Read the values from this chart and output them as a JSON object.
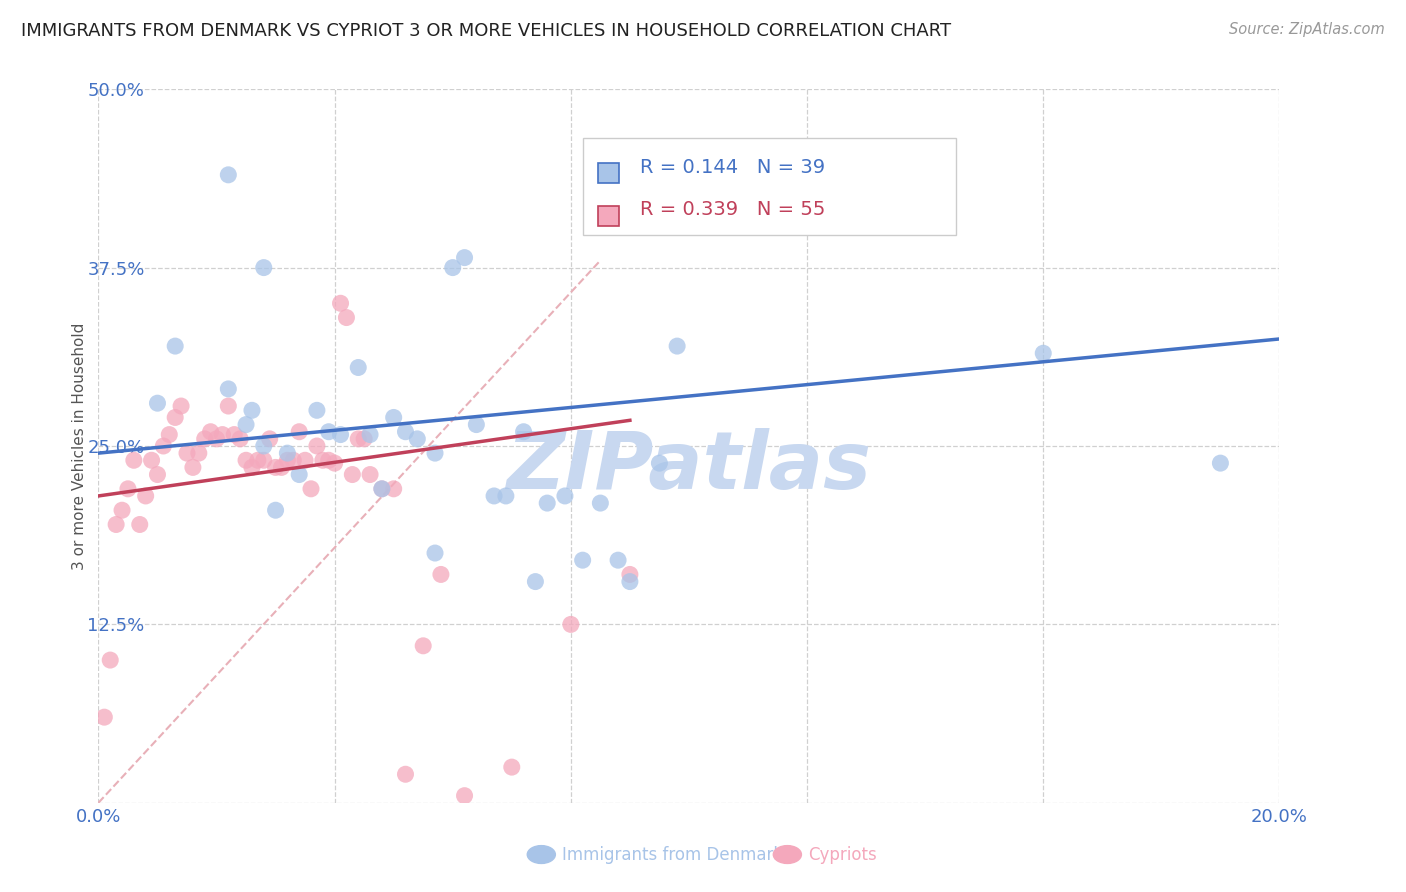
{
  "title": "IMMIGRANTS FROM DENMARK VS CYPRIOT 3 OR MORE VEHICLES IN HOUSEHOLD CORRELATION CHART",
  "source_text": "Source: ZipAtlas.com",
  "ylabel": "3 or more Vehicles in Household",
  "xlim": [
    0.0,
    0.2
  ],
  "ylim": [
    0.0,
    0.5
  ],
  "xticks": [
    0.0,
    0.04,
    0.08,
    0.12,
    0.16,
    0.2
  ],
  "yticks": [
    0.0,
    0.125,
    0.25,
    0.375,
    0.5
  ],
  "ytick_labels": [
    "",
    "12.5%",
    "25.0%",
    "37.5%",
    "50.0%"
  ],
  "xtick_labels": [
    "0.0%",
    "",
    "",
    "",
    "",
    "20.0%"
  ],
  "blue_R": 0.144,
  "blue_N": 39,
  "pink_R": 0.339,
  "pink_N": 55,
  "blue_scatter_color": "#a8c4e8",
  "pink_scatter_color": "#f4a8bc",
  "blue_line_color": "#4472c4",
  "pink_line_color": "#c0405a",
  "diagonal_color": "#e8b0b8",
  "grid_color": "#d0d0d0",
  "title_color": "#222222",
  "tick_color": "#4472c4",
  "watermark_color": "#c8d8f0",
  "background_color": "#ffffff",
  "blue_x": [
    0.022,
    0.013,
    0.028,
    0.022,
    0.025,
    0.028,
    0.03,
    0.032,
    0.034,
    0.037,
    0.039,
    0.041,
    0.044,
    0.046,
    0.048,
    0.05,
    0.052,
    0.054,
    0.057,
    0.06,
    0.062,
    0.064,
    0.067,
    0.069,
    0.072,
    0.074,
    0.076,
    0.079,
    0.082,
    0.085,
    0.088,
    0.09,
    0.095,
    0.098,
    0.16,
    0.19,
    0.026,
    0.01,
    0.057
  ],
  "blue_y": [
    0.44,
    0.32,
    0.375,
    0.29,
    0.265,
    0.25,
    0.205,
    0.245,
    0.23,
    0.275,
    0.26,
    0.258,
    0.305,
    0.258,
    0.22,
    0.27,
    0.26,
    0.255,
    0.245,
    0.375,
    0.382,
    0.265,
    0.215,
    0.215,
    0.26,
    0.155,
    0.21,
    0.215,
    0.17,
    0.21,
    0.17,
    0.155,
    0.238,
    0.32,
    0.315,
    0.238,
    0.275,
    0.28,
    0.175
  ],
  "pink_x": [
    0.001,
    0.002,
    0.003,
    0.004,
    0.005,
    0.006,
    0.007,
    0.008,
    0.009,
    0.01,
    0.011,
    0.012,
    0.013,
    0.014,
    0.015,
    0.016,
    0.017,
    0.018,
    0.019,
    0.02,
    0.021,
    0.022,
    0.023,
    0.024,
    0.025,
    0.026,
    0.027,
    0.028,
    0.029,
    0.03,
    0.031,
    0.032,
    0.033,
    0.034,
    0.035,
    0.036,
    0.037,
    0.038,
    0.039,
    0.04,
    0.041,
    0.042,
    0.043,
    0.044,
    0.045,
    0.046,
    0.048,
    0.05,
    0.052,
    0.055,
    0.058,
    0.062,
    0.07,
    0.08,
    0.09
  ],
  "pink_y": [
    0.06,
    0.1,
    0.195,
    0.205,
    0.22,
    0.24,
    0.195,
    0.215,
    0.24,
    0.23,
    0.25,
    0.258,
    0.27,
    0.278,
    0.245,
    0.235,
    0.245,
    0.255,
    0.26,
    0.255,
    0.258,
    0.278,
    0.258,
    0.255,
    0.24,
    0.235,
    0.24,
    0.24,
    0.255,
    0.235,
    0.235,
    0.24,
    0.24,
    0.26,
    0.24,
    0.22,
    0.25,
    0.24,
    0.24,
    0.238,
    0.35,
    0.34,
    0.23,
    0.255,
    0.255,
    0.23,
    0.22,
    0.22,
    0.02,
    0.11,
    0.16,
    0.005,
    0.025,
    0.125,
    0.16
  ],
  "figsize": [
    14.06,
    8.92
  ],
  "dpi": 100
}
